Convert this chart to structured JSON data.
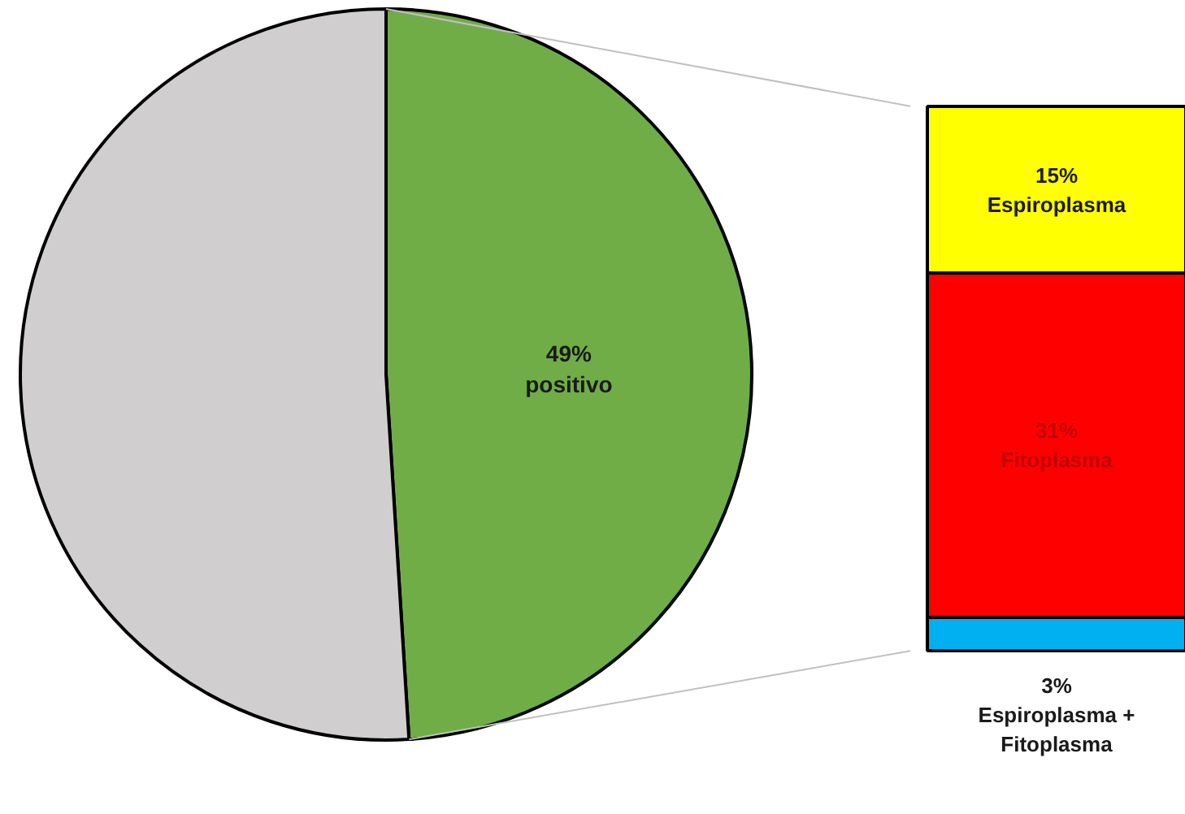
{
  "chart_data": [
    {
      "type": "pie",
      "categories": [
        "positivo",
        null
      ],
      "values": [
        49,
        51
      ],
      "colors": [
        "#70ad47",
        "#d0cece"
      ],
      "value_labels": [
        "49%",
        null
      ]
    },
    {
      "type": "bar",
      "stacked": true,
      "categories": [
        null
      ],
      "ylim": [
        0,
        49
      ],
      "tick_labels": false,
      "series": [
        {
          "name": "Espiroplasma + Fitoplasma",
          "color": "#00b0f0",
          "values": [
            3
          ],
          "value_labels": [
            "3%"
          ]
        },
        {
          "name": "Fitoplasma",
          "color": "#ff0000",
          "values": [
            31
          ],
          "value_labels": [
            "31%"
          ]
        },
        {
          "name": "Espiroplasma",
          "color": "#ffff00",
          "values": [
            15
          ],
          "value_labels": [
            "15%"
          ]
        }
      ]
    }
  ]
}
